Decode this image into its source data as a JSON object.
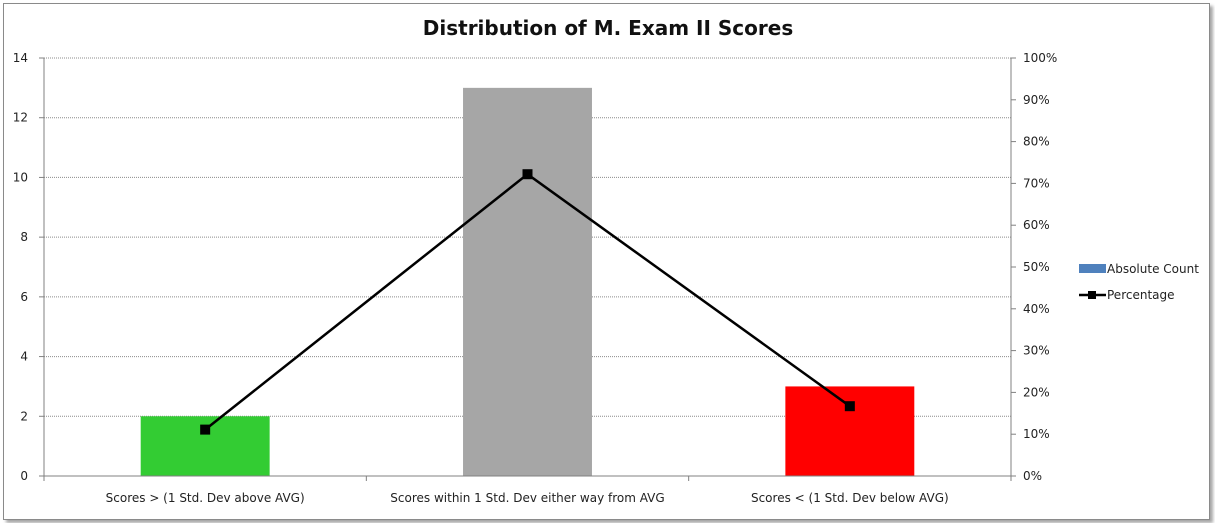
{
  "chart_data": {
    "type": "bar",
    "title": "Distribution of M. Exam II Scores",
    "categories": [
      "Scores > (1 Std. Dev above AVG)",
      "Scores within 1 Std. Dev either way from AVG",
      "Scores < (1 Std. Dev below AVG)"
    ],
    "series": [
      {
        "name": "Absolute Count",
        "type": "bar",
        "axis": "left",
        "values": [
          2,
          13,
          3
        ],
        "colors": [
          "#33cc33",
          "#a6a6a6",
          "#ff0000"
        ],
        "legend_color": "#4f81bd"
      },
      {
        "name": "Percentage",
        "type": "line",
        "axis": "right",
        "values": [
          0.111,
          0.722,
          0.167
        ],
        "color": "#000000"
      }
    ],
    "ylim": [
      0,
      14
    ],
    "yticks": [
      "0",
      "2",
      "4",
      "6",
      "8",
      "10",
      "12",
      "14"
    ],
    "y2lim": [
      0,
      1
    ],
    "y2ticks": [
      "0%",
      "10%",
      "20%",
      "30%",
      "40%",
      "50%",
      "60%",
      "70%",
      "80%",
      "90%",
      "100%"
    ],
    "grid": true,
    "legend": "right"
  }
}
